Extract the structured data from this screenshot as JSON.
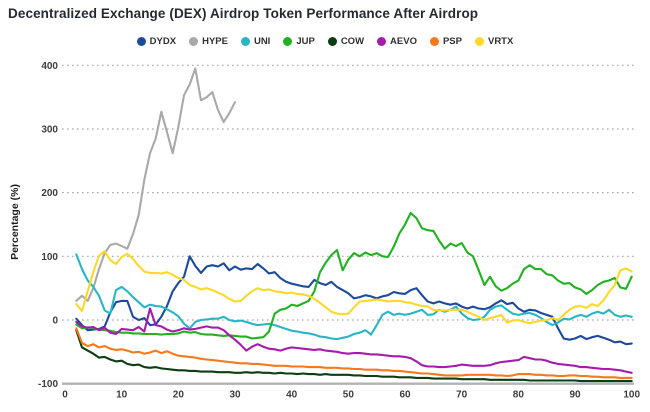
{
  "chart_data": {
    "type": "line",
    "title": "Decentralized Exchange (DEX) Airdrop Token Performance After Airdrop",
    "xlabel": "",
    "ylabel": "Percentage (%)",
    "xlim": [
      0,
      100
    ],
    "ylim": [
      -100,
      400
    ],
    "x_ticks": [
      0,
      10,
      20,
      30,
      40,
      50,
      60,
      70,
      80,
      90,
      100
    ],
    "y_ticks": [
      -100,
      0,
      100,
      200,
      300,
      400
    ],
    "grid": "horizontal-dotted",
    "legend_position": "top-center",
    "x_start": 2,
    "x_step": 1,
    "series": [
      {
        "name": "DYDX",
        "color": "#1d4a99",
        "values": [
          2,
          -8,
          -16,
          -15,
          -14,
          -10,
          12,
          28,
          30,
          30,
          5,
          0,
          3,
          -8,
          -7,
          5,
          22,
          45,
          58,
          68,
          100,
          85,
          74,
          84,
          86,
          84,
          89,
          78,
          84,
          79,
          81,
          80,
          88,
          81,
          73,
          75,
          66,
          60,
          57,
          55,
          53,
          52,
          63,
          58,
          55,
          60,
          52,
          47,
          42,
          34,
          36,
          39,
          37,
          34,
          37,
          39,
          44,
          42,
          41,
          47,
          50,
          39,
          29,
          26,
          29,
          26,
          24,
          26,
          21,
          18,
          21,
          18,
          17,
          20,
          26,
          31,
          25,
          27,
          18,
          13,
          16,
          15,
          11,
          8,
          5,
          -13,
          -29,
          -31,
          -29,
          -25,
          -30,
          -27,
          -25,
          -28,
          -31,
          -35,
          -34,
          -38,
          -37
        ]
      },
      {
        "name": "HYPE",
        "color": "#a9a9a9",
        "values": [
          30,
          38,
          30,
          50,
          80,
          105,
          118,
          120,
          116,
          112,
          135,
          165,
          220,
          262,
          285,
          327,
          295,
          262,
          303,
          353,
          370,
          395,
          345,
          350,
          358,
          330,
          311,
          325,
          342
        ]
      },
      {
        "name": "UNI",
        "color": "#28b6c6",
        "values": [
          103,
          80,
          62,
          52,
          38,
          15,
          10,
          47,
          52,
          45,
          36,
          28,
          20,
          24,
          22,
          21,
          17,
          12,
          6,
          -6,
          -13,
          -3,
          0,
          1,
          2,
          2,
          5,
          0,
          -2,
          -1,
          -3,
          -6,
          -8,
          -7,
          -6,
          -8,
          -11,
          -14,
          -17,
          -18,
          -20,
          -21,
          -23,
          -26,
          -27,
          -29,
          -30,
          -28,
          -26,
          -22,
          -20,
          -16,
          -23,
          -8,
          8,
          13,
          8,
          10,
          8,
          10,
          13,
          16,
          8,
          9,
          16,
          13,
          16,
          21,
          10,
          3,
          0,
          1,
          5,
          16,
          21,
          23,
          16,
          10,
          8,
          10,
          11,
          8,
          3,
          -3,
          -8,
          -4,
          2,
          1,
          5,
          8,
          5,
          10,
          13,
          10,
          16,
          8,
          5,
          7,
          5
        ]
      },
      {
        "name": "JUP",
        "color": "#21b121",
        "values": [
          -7,
          -13,
          -12,
          -13,
          -15,
          -16,
          -17,
          -19,
          -20,
          -20,
          -21,
          -21,
          -22,
          -22,
          -22,
          -23,
          -22,
          -22,
          -21,
          -18,
          -20,
          -19,
          -22,
          -23,
          -23,
          -24,
          -25,
          -24,
          -25,
          -26,
          -26,
          -29,
          -28,
          -27,
          -18,
          10,
          16,
          18,
          24,
          22,
          26,
          30,
          45,
          75,
          90,
          102,
          110,
          78,
          95,
          105,
          100,
          106,
          102,
          105,
          100,
          99,
          115,
          136,
          150,
          168,
          160,
          144,
          141,
          140,
          125,
          112,
          120,
          116,
          121,
          106,
          100,
          78,
          55,
          68,
          53,
          46,
          50,
          57,
          62,
          80,
          86,
          80,
          80,
          72,
          70,
          62,
          57,
          58,
          51,
          48,
          41,
          47,
          55,
          60,
          62,
          66,
          51,
          49,
          68
        ]
      },
      {
        "name": "COW",
        "color": "#0d3d12",
        "values": [
          -16,
          -43,
          -48,
          -53,
          -59,
          -58,
          -62,
          -65,
          -64,
          -69,
          -71,
          -70,
          -74,
          -75,
          -74,
          -76,
          -77,
          -78,
          -79,
          -79,
          -80,
          -80,
          -81,
          -81,
          -81,
          -82,
          -82,
          -82,
          -83,
          -83,
          -82,
          -83,
          -82,
          -83,
          -83,
          -84,
          -83,
          -84,
          -84,
          -85,
          -84,
          -85,
          -85,
          -86,
          -85,
          -86,
          -86,
          -86,
          -86,
          -87,
          -87,
          -88,
          -88,
          -88,
          -89,
          -89,
          -89,
          -90,
          -90,
          -90,
          -91,
          -91,
          -91,
          -92,
          -92,
          -92,
          -92,
          -92,
          -93,
          -93,
          -93,
          -93,
          -93,
          -94,
          -94,
          -94,
          -94,
          -94,
          -94,
          -94,
          -95,
          -95,
          -95,
          -95,
          -95,
          -95,
          -95,
          -95,
          -95,
          -96,
          -96,
          -96,
          -96,
          -96,
          -96,
          -96,
          -96,
          -96,
          -96
        ]
      },
      {
        "name": "AEVO",
        "color": "#a51cac",
        "values": [
          -3,
          -10,
          -12,
          -11,
          -16,
          -12,
          -20,
          -22,
          -14,
          -15,
          -16,
          -11,
          -18,
          18,
          -8,
          -10,
          -15,
          -18,
          -16,
          -13,
          -15,
          -14,
          -12,
          -10,
          -12,
          -12,
          -16,
          -24,
          -31,
          -39,
          -48,
          -42,
          -38,
          -42,
          -45,
          -46,
          -48,
          -45,
          -43,
          -44,
          -45,
          -46,
          -47,
          -46,
          -48,
          -49,
          -50,
          -52,
          -53,
          -52,
          -52,
          -53,
          -54,
          -54,
          -55,
          -56,
          -57,
          -57,
          -58,
          -60,
          -65,
          -71,
          -73,
          -73,
          -74,
          -74,
          -73,
          -72,
          -70,
          -71,
          -72,
          -72,
          -72,
          -71,
          -68,
          -66,
          -65,
          -64,
          -63,
          -58,
          -60,
          -62,
          -62,
          -64,
          -67,
          -69,
          -70,
          -71,
          -72,
          -74,
          -74,
          -75,
          -76,
          -77,
          -77,
          -78,
          -79,
          -81,
          -83
        ]
      },
      {
        "name": "PSP",
        "color": "#f5791d",
        "values": [
          -13,
          -36,
          -41,
          -38,
          -43,
          -41,
          -45,
          -47,
          -46,
          -48,
          -51,
          -50,
          -53,
          -51,
          -48,
          -52,
          -49,
          -53,
          -56,
          -57,
          -58,
          -59,
          -61,
          -62,
          -63,
          -64,
          -65,
          -66,
          -67,
          -68,
          -68,
          -69,
          -69,
          -70,
          -71,
          -72,
          -72,
          -72,
          -73,
          -73,
          -73,
          -74,
          -74,
          -74,
          -75,
          -75,
          -75,
          -76,
          -76,
          -77,
          -77,
          -78,
          -78,
          -78,
          -79,
          -79,
          -80,
          -80,
          -81,
          -82,
          -83,
          -84,
          -84,
          -85,
          -86,
          -87,
          -87,
          -87,
          -87,
          -86,
          -86,
          -86,
          -86,
          -86,
          -87,
          -87,
          -88,
          -87,
          -85,
          -85,
          -85,
          -86,
          -86,
          -87,
          -87,
          -88,
          -88,
          -87,
          -87,
          -88,
          -88,
          -89,
          -89,
          -90,
          -90,
          -90,
          -91,
          -91,
          -91
        ]
      },
      {
        "name": "VRTX",
        "color": "#fdd82b",
        "values": [
          25,
          14,
          45,
          75,
          101,
          108,
          94,
          88,
          99,
          104,
          96,
          85,
          76,
          74,
          74,
          73,
          75,
          71,
          66,
          63,
          55,
          52,
          48,
          50,
          47,
          43,
          39,
          33,
          29,
          30,
          38,
          45,
          50,
          47,
          48,
          45,
          44,
          42,
          43,
          41,
          40,
          38,
          33,
          27,
          20,
          13,
          10,
          9,
          10,
          20,
          29,
          30,
          31,
          32,
          31,
          29,
          30,
          30,
          28,
          27,
          24,
          22,
          21,
          16,
          15,
          15,
          16,
          16,
          16,
          13,
          9,
          5,
          0,
          3,
          5,
          8,
          -4,
          -1,
          0,
          -3,
          -5,
          -3,
          -1,
          0,
          3,
          0,
          8,
          16,
          21,
          22,
          19,
          25,
          22,
          31,
          44,
          55,
          78,
          81,
          76
        ]
      }
    ],
    "style": {
      "grid_color": "#a8a8a8",
      "axis_color": "#b3b3b3",
      "title_color": "#252a31",
      "tick_color": "#3d3d3d",
      "background": "#ffffff"
    }
  }
}
